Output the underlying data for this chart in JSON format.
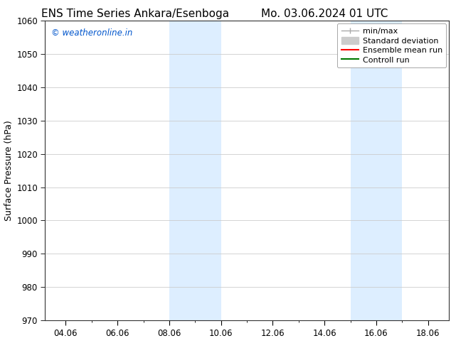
{
  "title_left": "ENS Time Series Ankara/Esenboga",
  "title_right": "Mo. 03.06.2024 01 UTC",
  "ylabel": "Surface Pressure (hPa)",
  "watermark": "© weatheronline.in",
  "watermark_color": "#0055cc",
  "ylim": [
    970,
    1060
  ],
  "yticks": [
    970,
    980,
    990,
    1000,
    1010,
    1020,
    1030,
    1040,
    1050,
    1060
  ],
  "xlim_start": 3.2,
  "xlim_end": 18.8,
  "xtick_labels": [
    "04.06",
    "06.06",
    "08.06",
    "10.06",
    "12.06",
    "14.06",
    "16.06",
    "18.06"
  ],
  "xtick_positions": [
    4,
    6,
    8,
    10,
    12,
    14,
    16,
    18
  ],
  "shaded_bands": [
    {
      "x_start": 8.0,
      "x_end": 10.0
    },
    {
      "x_start": 15.0,
      "x_end": 17.0
    }
  ],
  "shaded_color": "#ddeeff",
  "background_color": "#ffffff",
  "legend_items": [
    {
      "label": "min/max",
      "color": "#aaaaaa",
      "lw": 1.0,
      "style": "solid",
      "type": "line_tick"
    },
    {
      "label": "Standard deviation",
      "color": "#cccccc",
      "lw": 8,
      "style": "solid",
      "type": "patch"
    },
    {
      "label": "Ensemble mean run",
      "color": "#ff0000",
      "lw": 1.5,
      "style": "solid",
      "type": "line"
    },
    {
      "label": "Controll run",
      "color": "#007700",
      "lw": 1.5,
      "style": "solid",
      "type": "line"
    }
  ],
  "grid_color": "#cccccc",
  "title_fontsize": 11,
  "tick_fontsize": 8.5,
  "ylabel_fontsize": 9,
  "legend_fontsize": 8
}
